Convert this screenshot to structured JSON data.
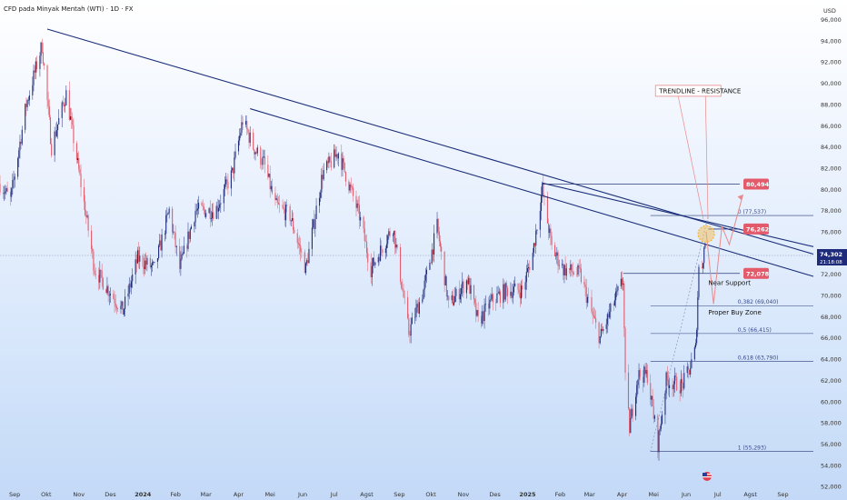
{
  "header": {
    "title": "CFD pada Minyak Mentah (WTI) · 1D · FX",
    "currency": "USD"
  },
  "price_axis": {
    "ticks": [
      "96,000",
      "94,000",
      "92,000",
      "90,000",
      "88,000",
      "86,000",
      "84,000",
      "82,000",
      "80,000",
      "78,000",
      "76,000",
      "74,000",
      "72,000",
      "70,000",
      "68,000",
      "66,000",
      "64,000",
      "62,000",
      "60,000",
      "58,000",
      "56,000",
      "54,000",
      "52,000"
    ],
    "current_price": "74,302",
    "countdown": "21:18:08"
  },
  "time_axis": {
    "ticks": [
      "Sep",
      "Okt",
      "Nov",
      "Des",
      "2024",
      "Feb",
      "Mar",
      "Apr",
      "Mei",
      "Jun",
      "Jul",
      "Agst",
      "Sep",
      "Okt",
      "Nov",
      "Des",
      "2025",
      "Feb",
      "Mar",
      "Apr",
      "Mei",
      "Jun",
      "Jul",
      "Agst",
      "Sep"
    ]
  },
  "chart_data": {
    "type": "candlestick",
    "title": "CFD pada Minyak Mentah (WTI) · 1D · FX",
    "ylim": [
      51.5,
      97.5
    ],
    "y_unit": "USD",
    "x_range": [
      "2023-08-18",
      "2025-09-30"
    ],
    "colors": {
      "up": "#1e2b7a",
      "down": "#e35a6b",
      "trendline": "#1b2f7a",
      "annotation": "#e88a8a",
      "marker": "#f5b53d"
    },
    "ohlc_anchors": [
      [
        "2023-08-18",
        80.5
      ],
      [
        "2023-08-28",
        79.0
      ],
      [
        "2023-09-12",
        88.0
      ],
      [
        "2023-09-27",
        93.6
      ],
      [
        "2023-10-06",
        84.0
      ],
      [
        "2023-10-20",
        89.0
      ],
      [
        "2023-11-03",
        80.5
      ],
      [
        "2023-11-16",
        72.5
      ],
      [
        "2023-12-13",
        68.5
      ],
      [
        "2023-12-27",
        73.5
      ],
      [
        "2024-01-12",
        72.5
      ],
      [
        "2024-01-26",
        78.0
      ],
      [
        "2024-02-05",
        72.5
      ],
      [
        "2024-02-20",
        78.0
      ],
      [
        "2024-03-10",
        78.0
      ],
      [
        "2024-03-26",
        81.5
      ],
      [
        "2024-04-05",
        86.5
      ],
      [
        "2024-04-15",
        84.0
      ],
      [
        "2024-04-25",
        82.5
      ],
      [
        "2024-05-06",
        78.5
      ],
      [
        "2024-05-20",
        77.5
      ],
      [
        "2024-06-04",
        72.5
      ],
      [
        "2024-06-20",
        81.5
      ],
      [
        "2024-07-05",
        83.5
      ],
      [
        "2024-07-25",
        77.5
      ],
      [
        "2024-08-05",
        72.5
      ],
      [
        "2024-08-26",
        76.5
      ],
      [
        "2024-09-10",
        66.5
      ],
      [
        "2024-09-24",
        70.5
      ],
      [
        "2024-10-07",
        76.5
      ],
      [
        "2024-10-18",
        69.0
      ],
      [
        "2024-11-05",
        71.5
      ],
      [
        "2024-11-15",
        67.5
      ],
      [
        "2024-11-28",
        69.5
      ],
      [
        "2024-12-12",
        70.5
      ],
      [
        "2024-12-27",
        70.5
      ],
      [
        "2025-01-06",
        74.0
      ],
      [
        "2025-01-15",
        80.0
      ],
      [
        "2025-01-24",
        74.5
      ],
      [
        "2025-02-04",
        72.5
      ],
      [
        "2025-02-20",
        72.0
      ],
      [
        "2025-03-04",
        68.0
      ],
      [
        "2025-03-11",
        66.0
      ],
      [
        "2025-03-25",
        69.5
      ],
      [
        "2025-04-02",
        71.5
      ],
      [
        "2025-04-04",
        62.0
      ],
      [
        "2025-04-08",
        57.5
      ],
      [
        "2025-04-16",
        62.5
      ],
      [
        "2025-04-25",
        62.5
      ],
      [
        "2025-05-02",
        58.0
      ],
      [
        "2025-05-05",
        56.0
      ],
      [
        "2025-05-13",
        62.0
      ],
      [
        "2025-05-28",
        61.5
      ],
      [
        "2025-06-04",
        63.0
      ],
      [
        "2025-06-10",
        65.0
      ],
      [
        "2025-06-13",
        72.5
      ],
      [
        "2025-06-16",
        73.0
      ],
      [
        "2025-06-19",
        75.0
      ]
    ],
    "trendlines": [
      {
        "from": [
          "2023-10-02",
          95.1
        ],
        "to": [
          "2025-09-30",
          73.9
        ]
      },
      {
        "from": [
          "2024-04-12",
          87.6
        ],
        "to": [
          "2025-09-30",
          71.8
        ]
      },
      {
        "from": [
          "2025-01-15",
          80.6
        ],
        "to": [
          "2025-09-30",
          74.6
        ]
      }
    ],
    "fibonacci": [
      {
        "ratio": "0",
        "price": 77.537,
        "label": "0 (77,537)"
      },
      {
        "ratio": "0.382",
        "price": 69.04,
        "label": "0,382 (69,040)"
      },
      {
        "ratio": "0.5",
        "price": 66.415,
        "label": "0,5 (66,415)"
      },
      {
        "ratio": "0.618",
        "price": 63.79,
        "label": "0,618 (63,790)"
      },
      {
        "ratio": "1",
        "price": 55.293,
        "label": "1 (55,293)"
      }
    ],
    "levels": [
      {
        "price": 80.494,
        "label": "80,494",
        "from": "2025-01-15",
        "to": "2025-07-22"
      },
      {
        "price": 76.262,
        "label": "76,262",
        "from": "2025-06-22",
        "to": "2025-07-22"
      },
      {
        "price": 72.078,
        "label": "72,078",
        "from": "2025-04-02",
        "to": "2025-07-22"
      }
    ],
    "projection": [
      [
        "2025-06-20",
        76.0
      ],
      [
        "2025-06-27",
        69.2
      ],
      [
        "2025-07-05",
        76.5
      ],
      [
        "2025-07-12",
        74.8
      ],
      [
        "2025-07-25",
        79.5
      ]
    ],
    "annotations": [
      {
        "text": "TRENDLINE - RESISTANCE",
        "at": [
          "2025-06-02",
          89.2
        ]
      },
      {
        "text": "Near Support",
        "at": [
          "2025-06-22",
          71.0
        ]
      },
      {
        "text": "Proper Buy Zone",
        "at": [
          "2025-06-22",
          68.2
        ]
      }
    ],
    "current_price": 74.302
  }
}
